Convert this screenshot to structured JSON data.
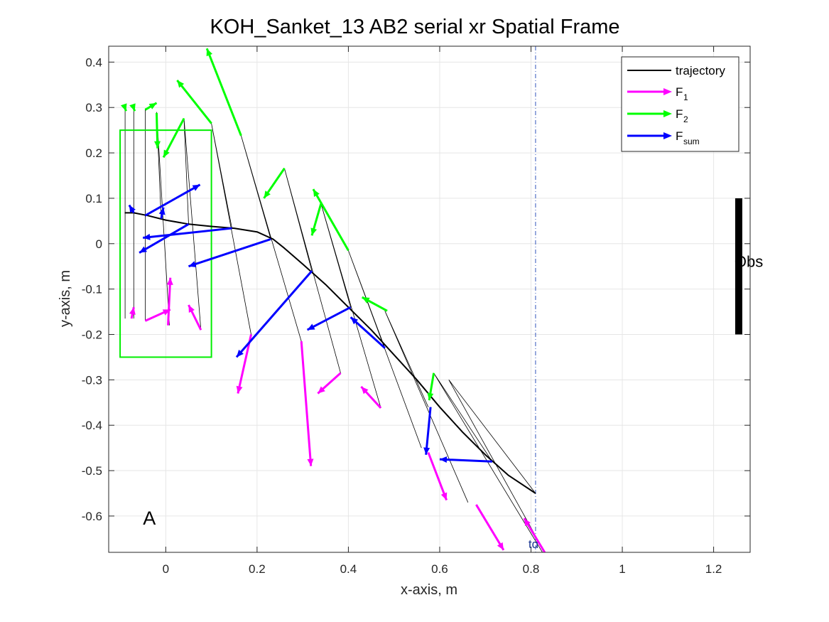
{
  "chart_data": {
    "type": "line",
    "title": "KOH_Sanket_13    AB2    serial    xr  Spatial Frame",
    "xlabel": "x-axis, m",
    "ylabel": "y-axis, m",
    "xlim": [
      -0.125,
      1.28
    ],
    "ylim": [
      -0.68,
      0.435
    ],
    "xticks": [
      0,
      0.2,
      0.4,
      0.6,
      0.8,
      1,
      1.2
    ],
    "xtick_labels": [
      "0",
      "0.2",
      "0.4",
      "0.6",
      "0.8",
      "1",
      "1.2"
    ],
    "yticks": [
      0.4,
      0.3,
      0.2,
      0.1,
      0,
      -0.1,
      -0.2,
      -0.3,
      -0.4,
      -0.5,
      -0.6
    ],
    "ytick_labels": [
      "0.4",
      "0.3",
      "0.2",
      "0.1",
      "0",
      "-0.1",
      "-0.2",
      "-0.3",
      "-0.4",
      "-0.5",
      "-0.6"
    ],
    "grid": true,
    "legend_position": "top-right",
    "legend": [
      {
        "label": "trajectory",
        "sub": "",
        "color": "#000000",
        "kind": "line"
      },
      {
        "label": "F",
        "sub": "1",
        "color": "#ff00ff",
        "kind": "arrow"
      },
      {
        "label": "F",
        "sub": "2",
        "color": "#00ff00",
        "kind": "arrow"
      },
      {
        "label": "F",
        "sub": "sum",
        "color": "#0000ff",
        "kind": "arrow"
      }
    ],
    "colors": {
      "trajectory": "#000000",
      "F1": "#ff00ff",
      "F2": "#00ff00",
      "Fsum": "#0000ff",
      "box": "#00ee00",
      "td_line": "#3355bb",
      "obstacle": "#000000"
    },
    "trajectory": {
      "x": [
        -0.09,
        -0.07,
        -0.04,
        0.0,
        0.05,
        0.1,
        0.15,
        0.2,
        0.235,
        0.26,
        0.3,
        0.35,
        0.4,
        0.45,
        0.5,
        0.55,
        0.6,
        0.65,
        0.7,
        0.75,
        0.81
      ],
      "y": [
        0.068,
        0.068,
        0.062,
        0.052,
        0.043,
        0.038,
        0.034,
        0.026,
        0.01,
        -0.01,
        -0.045,
        -0.09,
        -0.14,
        -0.19,
        -0.245,
        -0.3,
        -0.36,
        -0.415,
        -0.465,
        -0.51,
        -0.55
      ]
    },
    "links": [
      [
        [
          -0.089,
          0.07
        ],
        [
          -0.089,
          0.298
        ],
        [
          -0.089,
          -0.165
        ]
      ],
      [
        [
          -0.07,
          0.068
        ],
        [
          -0.07,
          0.298
        ],
        [
          -0.07,
          -0.165
        ]
      ],
      [
        [
          -0.045,
          0.062
        ],
        [
          -0.045,
          0.298
        ],
        [
          -0.045,
          -0.17
        ]
      ],
      [
        [
          -0.01,
          0.055
        ],
        [
          -0.02,
          0.29
        ],
        [
          0.008,
          -0.18
        ]
      ],
      [
        [
          0.05,
          0.043
        ],
        [
          0.04,
          0.276
        ],
        [
          0.077,
          -0.19
        ]
      ],
      [
        [
          0.145,
          0.034
        ],
        [
          0.1,
          0.265
        ],
        [
          0.187,
          -0.2
        ]
      ],
      [
        [
          0.23,
          0.01
        ],
        [
          0.165,
          0.238
        ],
        [
          0.297,
          -0.215
        ]
      ],
      [
        [
          0.32,
          -0.06
        ],
        [
          0.26,
          0.166
        ],
        [
          0.383,
          -0.285
        ]
      ],
      [
        [
          0.405,
          -0.14
        ],
        [
          0.34,
          0.088
        ],
        [
          0.471,
          -0.362
        ]
      ],
      [
        [
          0.48,
          -0.23
        ],
        [
          0.4,
          -0.015
        ],
        [
          0.56,
          -0.45
        ]
      ],
      [
        [
          0.575,
          -0.36
        ],
        [
          0.48,
          -0.148
        ],
        [
          0.662,
          -0.57
        ]
      ],
      [
        [
          0.715,
          -0.48
        ],
        [
          0.587,
          -0.285
        ],
        [
          0.825,
          -0.68
        ]
      ],
      [
        [
          0.81,
          -0.55
        ],
        [
          0.62,
          -0.3
        ],
        [
          0.83,
          -0.68
        ]
      ]
    ],
    "forces": {
      "F1": [
        [
          -0.075,
          -0.165,
          -0.07,
          -0.14
        ],
        [
          -0.045,
          -0.17,
          0.01,
          -0.145
        ],
        [
          0.005,
          -0.18,
          0.01,
          -0.075
        ],
        [
          0.077,
          -0.19,
          0.05,
          -0.135
        ],
        [
          0.187,
          -0.2,
          0.158,
          -0.33
        ],
        [
          0.297,
          -0.215,
          0.318,
          -0.49
        ],
        [
          0.383,
          -0.285,
          0.333,
          -0.33
        ],
        [
          0.471,
          -0.362,
          0.428,
          -0.315
        ],
        [
          0.575,
          -0.46,
          0.615,
          -0.565
        ],
        [
          0.68,
          -0.575,
          0.74,
          -0.675
        ],
        [
          0.83,
          -0.68,
          0.785,
          -0.605
        ]
      ],
      "F2": [
        [
          -0.089,
          0.298,
          -0.087,
          0.292
        ],
        [
          -0.07,
          0.298,
          -0.068,
          0.292
        ],
        [
          -0.045,
          0.295,
          -0.02,
          0.31
        ],
        [
          -0.02,
          0.288,
          -0.018,
          0.21
        ],
        [
          0.04,
          0.276,
          -0.005,
          0.19
        ],
        [
          0.1,
          0.265,
          0.025,
          0.36
        ],
        [
          0.165,
          0.238,
          0.09,
          0.43
        ],
        [
          0.26,
          0.166,
          0.215,
          0.1
        ],
        [
          0.34,
          0.088,
          0.32,
          0.018
        ],
        [
          0.4,
          -0.015,
          0.323,
          0.12
        ],
        [
          0.485,
          -0.148,
          0.43,
          -0.118
        ],
        [
          0.587,
          -0.285,
          0.577,
          -0.345
        ]
      ],
      "Fsum": [
        [
          -0.07,
          0.068,
          -0.08,
          0.085
        ],
        [
          -0.045,
          0.062,
          0.075,
          0.13
        ],
        [
          -0.01,
          0.055,
          -0.005,
          0.08
        ],
        [
          0.05,
          0.043,
          -0.058,
          -0.02
        ],
        [
          0.145,
          0.034,
          -0.05,
          0.013
        ],
        [
          0.23,
          0.01,
          0.05,
          -0.05
        ],
        [
          0.32,
          -0.06,
          0.155,
          -0.25
        ],
        [
          0.405,
          -0.14,
          0.31,
          -0.19
        ],
        [
          0.48,
          -0.23,
          0.405,
          -0.162
        ],
        [
          0.58,
          -0.36,
          0.57,
          -0.465
        ],
        [
          0.715,
          -0.48,
          0.6,
          -0.475
        ]
      ]
    },
    "box": {
      "x": [
        -0.1,
        0.1
      ],
      "y": [
        -0.25,
        0.25
      ]
    },
    "td": {
      "x": 0.81,
      "label": "td"
    },
    "obstacle": {
      "x": 1.255,
      "y": [
        -0.2,
        0.1
      ],
      "label": "Obs"
    },
    "annotation": {
      "text": "A",
      "x": -0.05,
      "y": -0.605
    }
  }
}
